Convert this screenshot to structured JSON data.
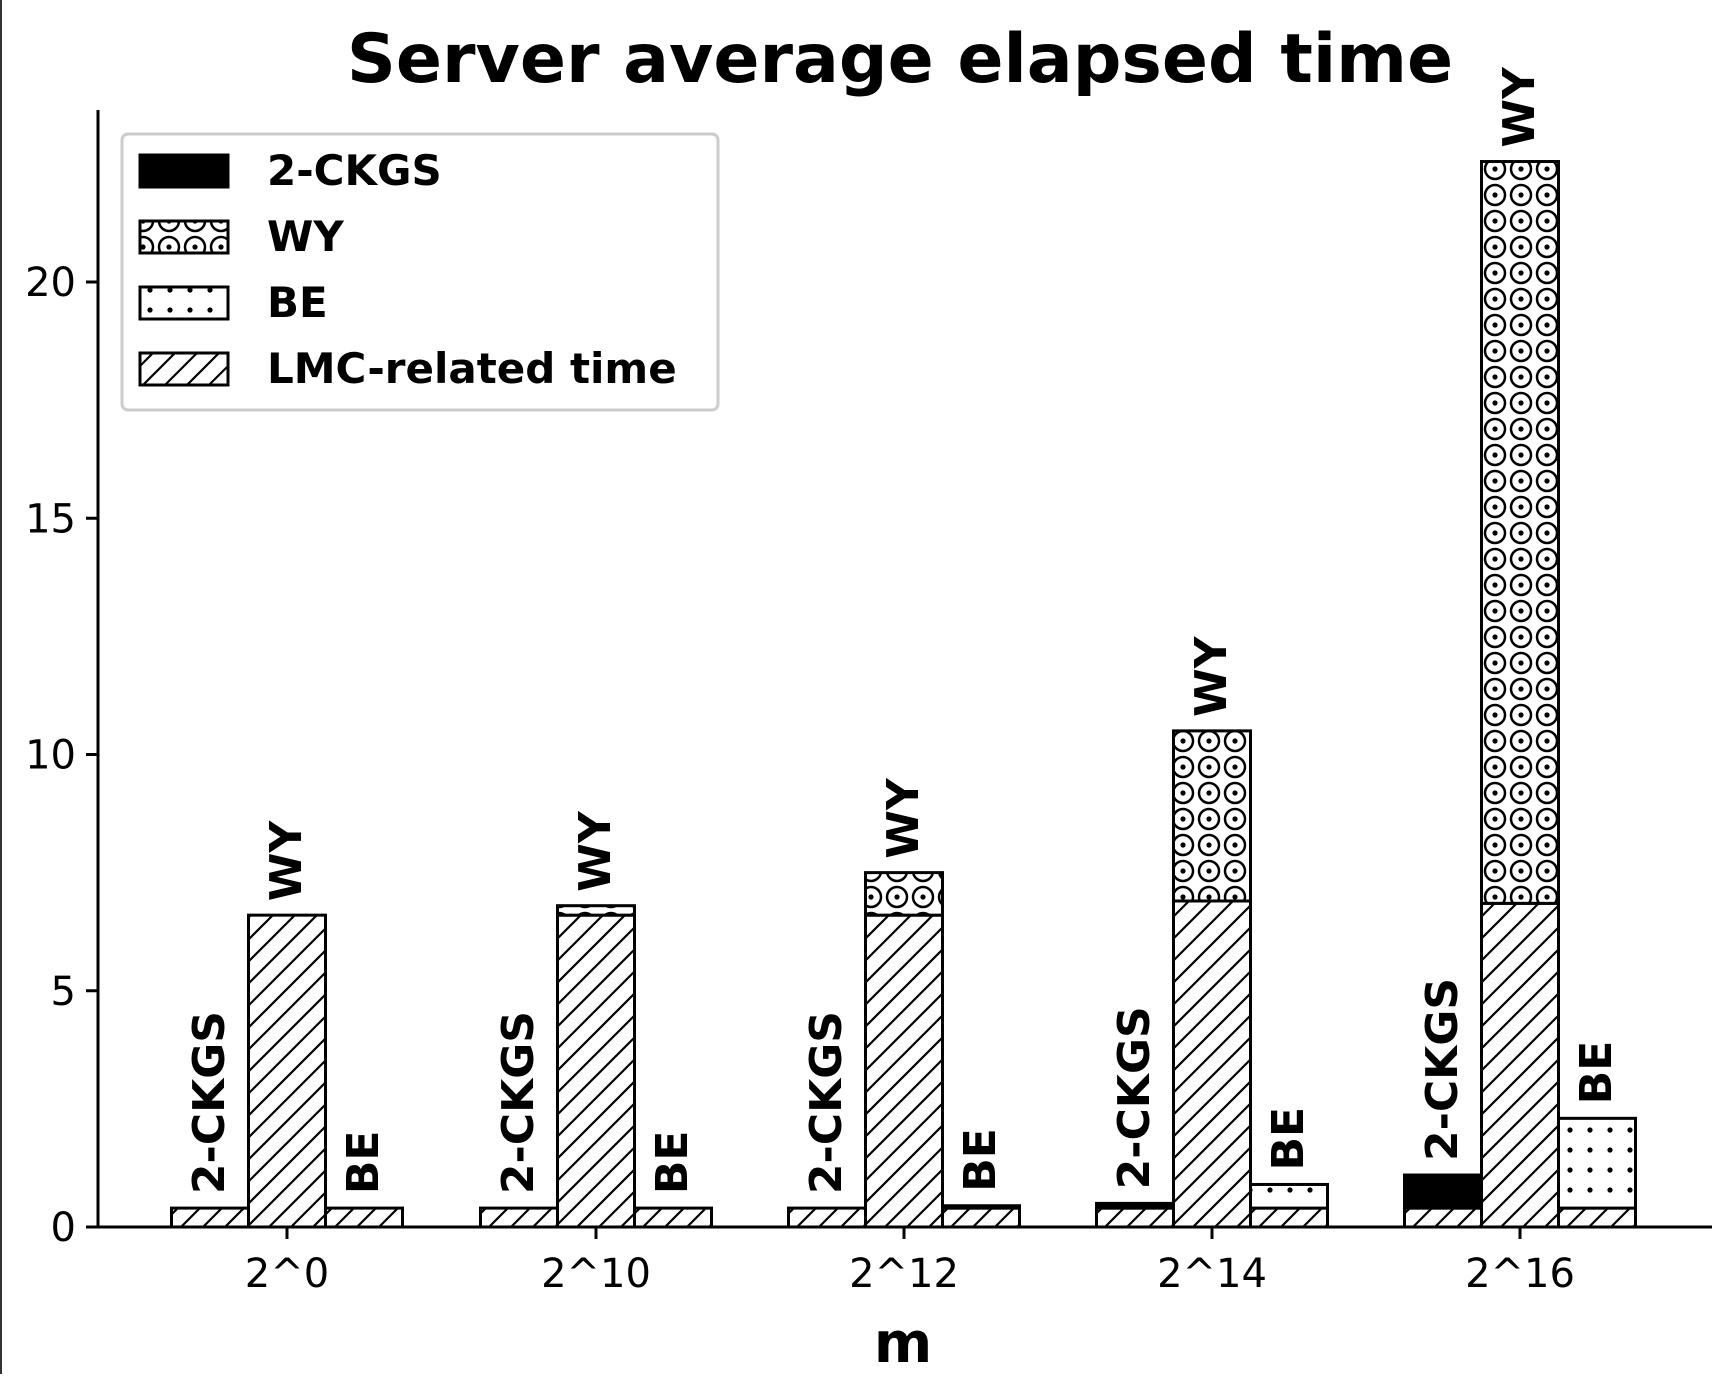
{
  "chart_data": {
    "type": "bar",
    "stacked": true,
    "title": "Server average elapsed time",
    "xlabel": "m",
    "ylabel": "",
    "categories": [
      "2^0",
      "2^10",
      "2^12",
      "2^14",
      "2^16"
    ],
    "groups": [
      "2-CKGS",
      "WY",
      "BE"
    ],
    "ylim": [
      0,
      23.2
    ],
    "yticks": [
      0,
      5,
      10,
      15,
      20
    ],
    "grid": false,
    "legend_position": "upper-left",
    "legend": [
      "2-CKGS",
      "WY",
      "BE",
      "LMC-related time"
    ],
    "series": [
      {
        "name": "LMC-related time",
        "pattern": "hatch-diagonal",
        "values": {
          "2-CKGS": [
            0.4,
            0.4,
            0.4,
            0.4,
            0.4
          ],
          "WY": [
            6.6,
            6.6,
            6.6,
            6.9,
            6.85
          ],
          "BE": [
            0.4,
            0.4,
            0.4,
            0.4,
            0.4
          ]
        }
      },
      {
        "name": "2-CKGS",
        "pattern": "solid-black",
        "values": {
          "2-CKGS": [
            0.0,
            0.0,
            0.0,
            0.1,
            0.7
          ]
        }
      },
      {
        "name": "WY",
        "pattern": "circles",
        "values": {
          "WY": [
            0.0,
            0.2,
            0.9,
            3.6,
            15.7
          ]
        }
      },
      {
        "name": "BE",
        "pattern": "dots",
        "values": {
          "BE": [
            0.0,
            0.0,
            0.05,
            0.5,
            1.9
          ]
        }
      }
    ],
    "bar_labels": [
      "2-CKGS",
      "WY",
      "BE"
    ]
  }
}
